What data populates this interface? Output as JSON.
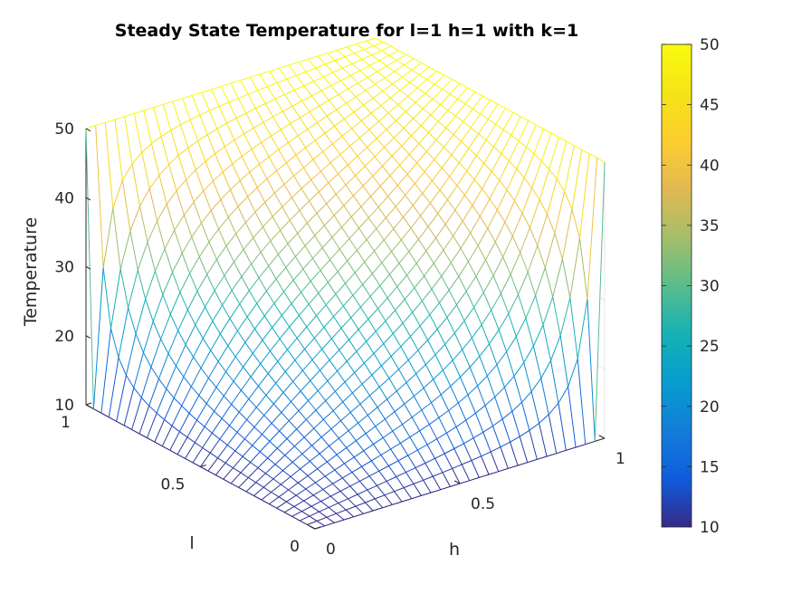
{
  "chart_data": {
    "type": "surface",
    "title": "Steady State Temperature for l=1 h=1 with k=1",
    "xlabel": "h",
    "ylabel": "l",
    "zlabel": "Temperature",
    "xlim": [
      0,
      1
    ],
    "ylim": [
      0,
      1
    ],
    "zlim": [
      10,
      50
    ],
    "x_ticks": [
      "0",
      "0.5",
      "1"
    ],
    "y_ticks": [
      "0",
      "0.5",
      "1"
    ],
    "z_ticks": [
      "10",
      "20",
      "30",
      "40",
      "50"
    ],
    "colorbar": {
      "range": [
        10,
        50
      ],
      "ticks": [
        "10",
        "15",
        "20",
        "25",
        "30",
        "35",
        "40",
        "45",
        "50"
      ],
      "colormap": "parula"
    },
    "grid": true,
    "surface": {
      "nx": 31,
      "ny": 31,
      "boundary": {
        "h0_edge": 10,
        "l0_edge": 10,
        "l1_edge": 50,
        "h1_edge": 50
      }
    }
  }
}
